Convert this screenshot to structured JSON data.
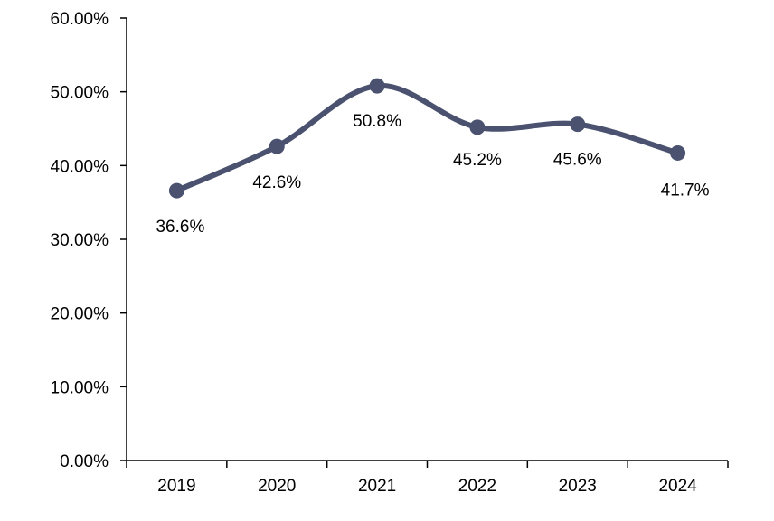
{
  "chart_data": {
    "type": "line",
    "categories": [
      "2019",
      "2020",
      "2021",
      "2022",
      "2023",
      "2024"
    ],
    "series": [
      {
        "values": [
          36.6,
          42.6,
          50.8,
          45.2,
          45.6,
          41.7
        ],
        "data_labels": [
          "36.6%",
          "42.6%",
          "50.8%",
          "45.2%",
          "45.6%",
          "41.7%"
        ],
        "color": "#4a5270",
        "smooth": true,
        "markers": "circle"
      }
    ],
    "y_ticks": [
      0,
      10,
      20,
      30,
      40,
      50,
      60
    ],
    "y_tick_labels": [
      "0.00%",
      "10.00%",
      "20.00%",
      "30.00%",
      "40.00%",
      "50.00%",
      "60.00%"
    ],
    "ylim": [
      0,
      60
    ],
    "grid": false,
    "legend": false,
    "axis_color": "#000000"
  }
}
